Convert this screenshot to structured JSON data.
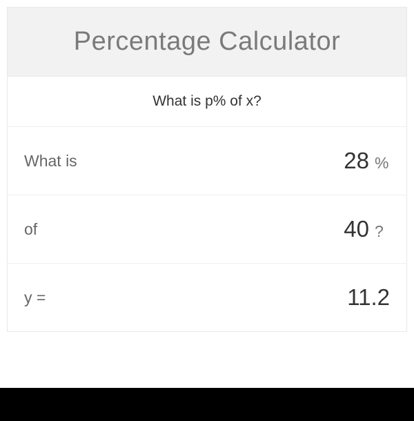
{
  "header": {
    "title": "Percentage Calculator"
  },
  "subtitle": "What is p% of x?",
  "fields": {
    "percent": {
      "label": "What is",
      "value": "28",
      "unit": "%"
    },
    "of": {
      "label": "of",
      "value": "40",
      "unit": "?"
    },
    "result": {
      "label": "y =",
      "value": "11.2"
    }
  },
  "colors": {
    "header_bg": "#f2f2f2",
    "header_text": "#7a7a7a",
    "border": "#e8e8e8",
    "row_border": "#eeeeee",
    "label_text": "#666666",
    "value_text": "#333333",
    "unit_text": "#777777",
    "bottom_bar": "#000000",
    "background": "#ffffff"
  },
  "typography": {
    "title_fontsize": 38,
    "subtitle_fontsize": 21,
    "label_fontsize": 23,
    "value_fontsize": 33,
    "unit_fontsize": 23
  }
}
